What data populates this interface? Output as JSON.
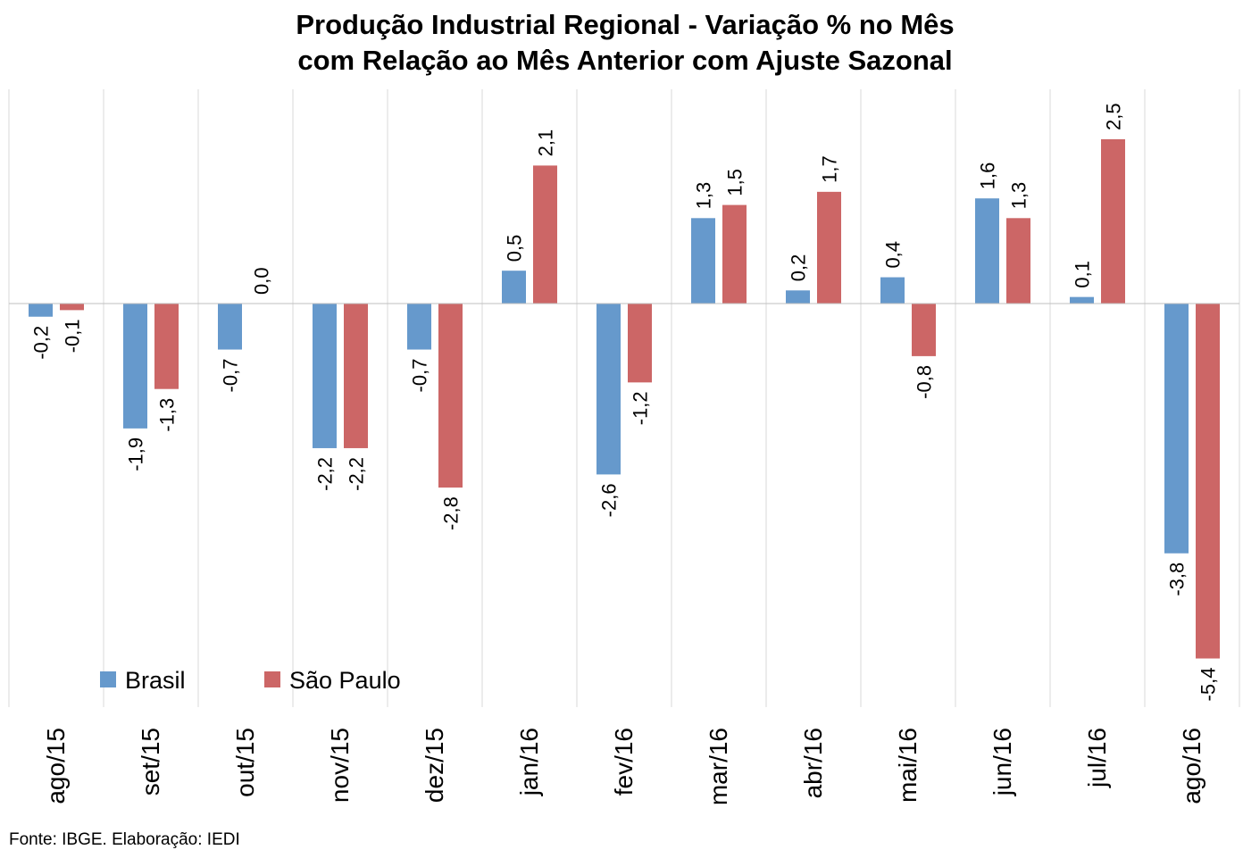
{
  "chart_data": {
    "type": "bar",
    "title": [
      "Produção Industrial Regional - Variação % no Mês",
      "com Relação ao Mês Anterior com Ajuste Sazonal"
    ],
    "categories": [
      "ago/15",
      "set/15",
      "out/15",
      "nov/15",
      "dez/15",
      "jan/16",
      "fev/16",
      "mar/16",
      "abr/16",
      "mai/16",
      "jun/16",
      "jul/16",
      "ago/16"
    ],
    "series": [
      {
        "name": "Brasil",
        "color": "#6699cc",
        "values": [
          -0.2,
          -1.9,
          -0.7,
          -2.2,
          -0.7,
          0.5,
          -2.6,
          1.3,
          0.2,
          0.4,
          1.6,
          0.1,
          -3.8
        ],
        "labels": [
          "-0,2",
          "-1,9",
          "-0,7",
          "-2,2",
          "-0,7",
          "0,5",
          "-2,6",
          "1,3",
          "0,2",
          "0,4",
          "1,6",
          "0,1",
          "-3,8"
        ]
      },
      {
        "name": "São Paulo",
        "color": "#cc6666",
        "values": [
          -0.1,
          -1.3,
          0.0,
          -2.2,
          -2.8,
          2.1,
          -1.2,
          1.5,
          1.7,
          -0.8,
          1.3,
          2.5,
          -5.4
        ],
        "labels": [
          "-0,1",
          "-1,3",
          "0,0",
          "-2,2",
          "-2,8",
          "2,1",
          "-1,2",
          "1,5",
          "1,7",
          "-0,8",
          "1,3",
          "2,5",
          "-5,4"
        ]
      }
    ],
    "xlabel": "",
    "ylabel": "",
    "ylim": [
      -6.1,
      3.3
    ],
    "grid": "vertical",
    "legend_position": "bottom-left"
  },
  "source": "Fonte: IBGE. Elaboração: IEDI"
}
